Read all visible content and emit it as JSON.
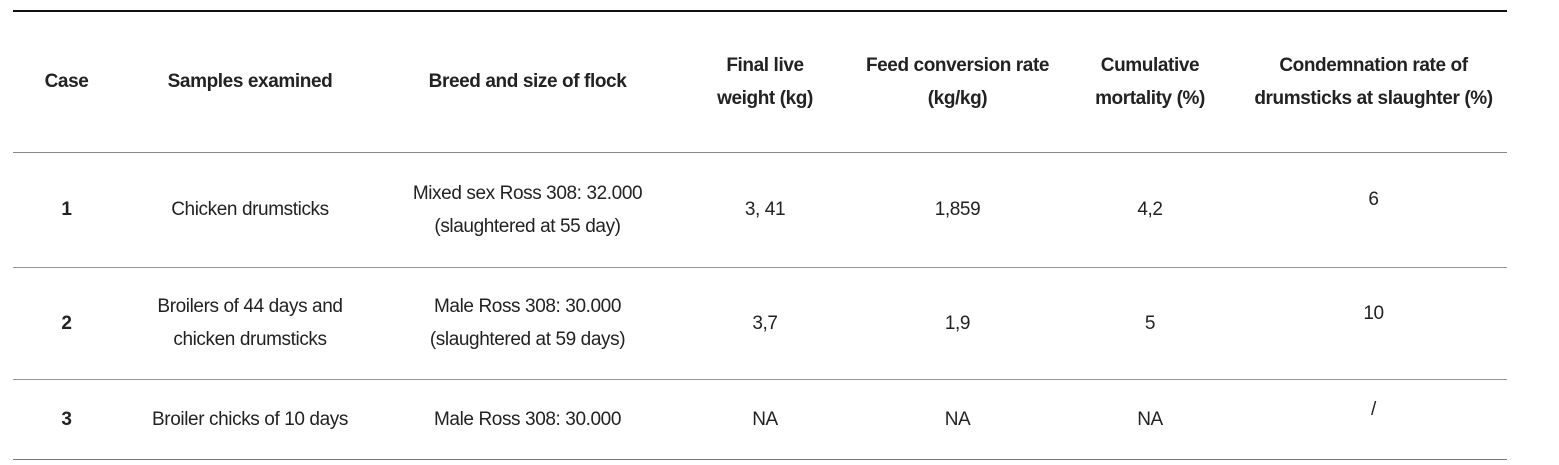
{
  "table": {
    "headers": [
      "Case",
      "Samples examined",
      "Breed and size of flock",
      "Final live weight (kg)",
      "Feed conversion rate (kg/kg)",
      "Cumulative mortality (%)",
      "Condemnation rate of drumsticks at slaughter (%)"
    ],
    "rows": [
      {
        "case": "1",
        "samples": "Chicken drumsticks",
        "breed": "Mixed sex Ross 308: 32.000 (slaughtered at 55 day)",
        "weight": "3, 41",
        "fcr": "1,859",
        "mortality": "4,2",
        "condemnation": "6"
      },
      {
        "case": "2",
        "samples": "Broilers of 44 days and chicken drumsticks",
        "breed": "Male Ross 308: 30.000 (slaughtered at 59 days)",
        "weight": "3,7",
        "fcr": "1,9",
        "mortality": "5",
        "condemnation": "10"
      },
      {
        "case": "3",
        "samples": "Broiler chicks of 10 days",
        "breed": "Male Ross 308: 30.000",
        "weight": "NA",
        "fcr": "NA",
        "mortality": "NA",
        "condemnation": "/"
      }
    ]
  }
}
